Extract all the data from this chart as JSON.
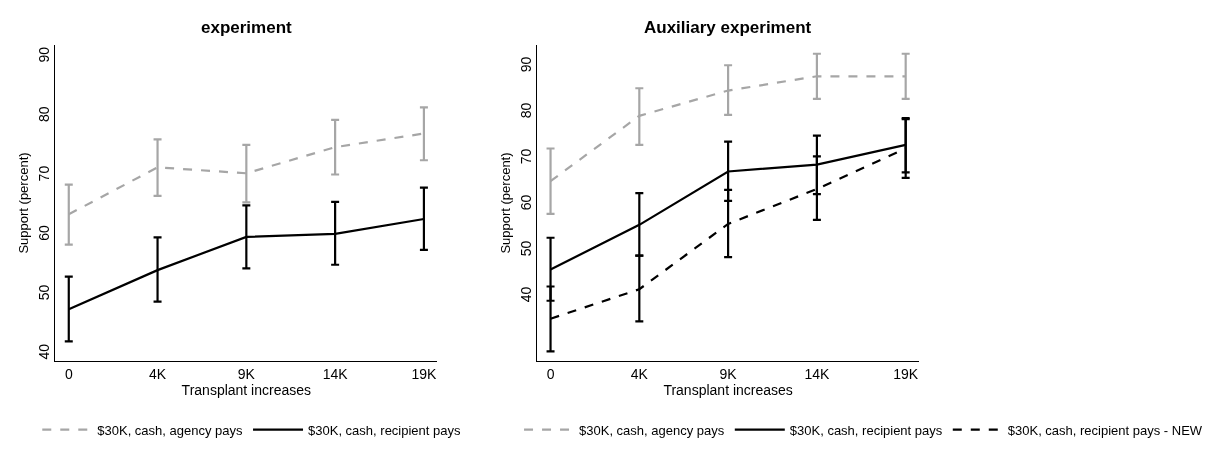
{
  "chart_data": [
    {
      "type": "line",
      "title": "experiment",
      "xlabel": "Transplant increases",
      "ylabel": "Support (percent)",
      "categories": [
        "0",
        "4K",
        "9K",
        "14K",
        "19K"
      ],
      "ylim": [
        38.8,
        92
      ],
      "yticks": [
        40,
        50,
        60,
        70,
        80,
        90
      ],
      "legend": "bottom",
      "marker": "none",
      "series": [
        {
          "name": "$30K, cash, agency pays",
          "color": "#a6a6a6",
          "line_style": "dashed",
          "values": [
            63.5,
            71.4,
            70.4,
            74.8,
            77.1
          ],
          "errors": [
            [
              58.4,
              68.5
            ],
            [
              66.6,
              76.1
            ],
            [
              65.5,
              75.2
            ],
            [
              70.2,
              79.4
            ],
            [
              72.6,
              81.5
            ]
          ]
        },
        {
          "name": "$30K, cash, recipient pays",
          "color": "#000000",
          "line_style": "solid",
          "values": [
            47.5,
            54.1,
            59.7,
            60.2,
            62.7
          ],
          "errors": [
            [
              42.1,
              53.0
            ],
            [
              48.8,
              59.6
            ],
            [
              54.4,
              65.0
            ],
            [
              55.0,
              65.6
            ],
            [
              57.5,
              68.0
            ]
          ]
        }
      ]
    },
    {
      "type": "line",
      "title": "Auxiliary experiment",
      "xlabel": "Transplant increases",
      "ylabel": "Support (percent)",
      "categories": [
        "0",
        "4K",
        "9K",
        "14K",
        "19K"
      ],
      "ylim": [
        26,
        94.7
      ],
      "yticks": [
        40,
        50,
        60,
        70,
        80,
        90
      ],
      "legend": "bottom",
      "marker": "none",
      "series": [
        {
          "name": "$30K, cash, agency pays",
          "color": "#a6a6a6",
          "line_style": "dashed",
          "values": [
            65.1,
            79.3,
            84.8,
            87.9,
            87.9
          ],
          "errors": [
            [
              58.0,
              72.2
            ],
            [
              73.0,
              85.3
            ],
            [
              79.5,
              90.3
            ],
            [
              83.0,
              92.8
            ],
            [
              83.0,
              92.8
            ]
          ]
        },
        {
          "name": "$30K, cash, recipient pays",
          "color": "#000000",
          "line_style": "solid",
          "values": [
            45.9,
            55.6,
            67.2,
            68.7,
            73.0
          ],
          "errors": [
            [
              39.1,
              52.8
            ],
            [
              48.9,
              62.5
            ],
            [
              60.8,
              73.7
            ],
            [
              62.3,
              75.0
            ],
            [
              67.0,
              78.8
            ]
          ]
        },
        {
          "name": "$30K, cash, recipient pays - NEW",
          "color": "#000000",
          "line_style": "dashed",
          "values": [
            35.2,
            41.6,
            55.8,
            63.4,
            72.2
          ],
          "errors": [
            [
              28.1,
              42.2
            ],
            [
              34.6,
              48.9
            ],
            [
              48.6,
              63.2
            ],
            [
              56.7,
              70.5
            ],
            [
              65.8,
              78.6
            ]
          ]
        }
      ]
    }
  ]
}
